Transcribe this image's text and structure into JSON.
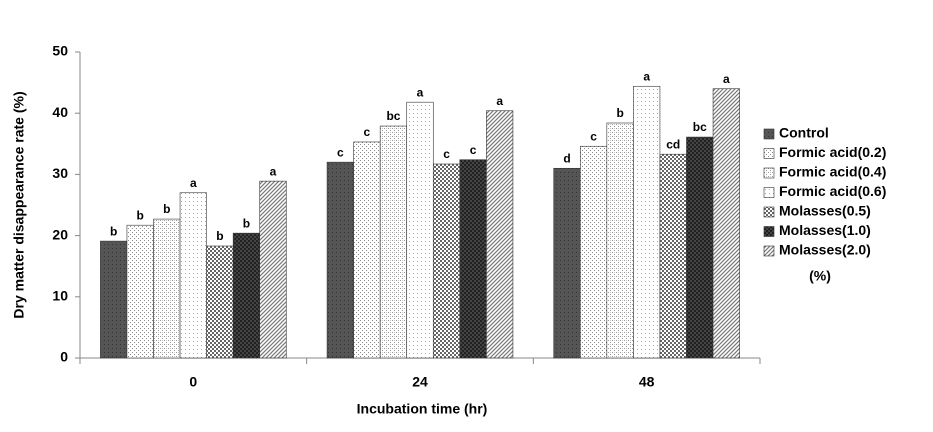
{
  "chart_data": {
    "type": "bar",
    "x_label": "Incubation time (hr)",
    "y_label": "Dry matter disappearance rate (%)",
    "categories": [
      "0",
      "24",
      "48"
    ],
    "ylim": [
      0,
      50
    ],
    "yticks": [
      0,
      10,
      20,
      30,
      40,
      50
    ],
    "legend_position": "right",
    "legend_note": "(%)",
    "series": [
      {
        "name": "Control",
        "color": "#555555",
        "pattern": "dark",
        "values": [
          19.1,
          32.0,
          31.0
        ],
        "letters": [
          "b",
          "c",
          "d"
        ]
      },
      {
        "name": "Formic acid(0.2)",
        "color": "#888888",
        "pattern": "fine-dots",
        "values": [
          21.7,
          35.3,
          34.6
        ],
        "letters": [
          "b",
          "c",
          "c"
        ]
      },
      {
        "name": "Formic acid(0.4)",
        "color": "#999999",
        "pattern": "dots",
        "values": [
          22.7,
          37.9,
          38.4
        ],
        "letters": [
          "b",
          "bc",
          "b"
        ]
      },
      {
        "name": "Formic acid(0.6)",
        "color": "#aaaaaa",
        "pattern": "sparse-dots",
        "values": [
          27.0,
          41.8,
          44.4
        ],
        "letters": [
          "a",
          "a",
          "a"
        ]
      },
      {
        "name": "Molasses(0.5)",
        "color": "#666666",
        "pattern": "checker",
        "values": [
          18.3,
          31.7,
          33.3
        ],
        "letters": [
          "b",
          "c",
          "cd"
        ]
      },
      {
        "name": "Molasses(1.0)",
        "color": "#444444",
        "pattern": "dark-checker",
        "values": [
          20.4,
          32.4,
          36.1
        ],
        "letters": [
          "b",
          "c",
          "bc"
        ]
      },
      {
        "name": "Molasses(2.0)",
        "color": "#777777",
        "pattern": "hatch",
        "values": [
          28.9,
          40.4,
          44.0
        ],
        "letters": [
          "a",
          "a",
          "a"
        ]
      }
    ]
  }
}
